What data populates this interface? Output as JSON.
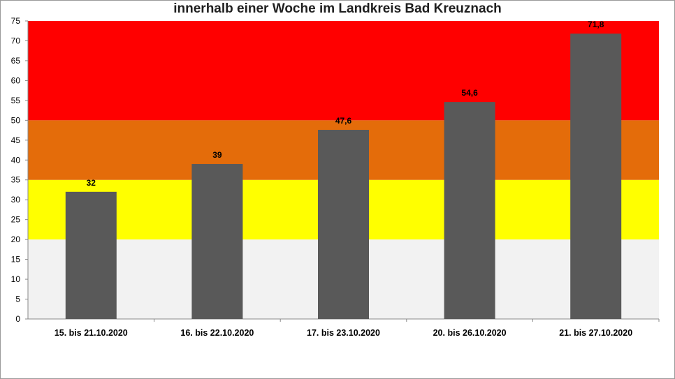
{
  "chart_data": {
    "type": "bar",
    "title": "innerhalb einer Woche im Landkreis Bad Kreuznach",
    "categories": [
      "15. bis 21.10.2020",
      "16. bis 22.10.2020",
      "17. bis 23.10.2020",
      "20. bis 26.10.2020",
      "21. bis 27.10.2020"
    ],
    "values": [
      32,
      39,
      47.6,
      54.6,
      71.8
    ],
    "data_labels": [
      "32",
      "39",
      "47,6",
      "54,6",
      "71,8"
    ],
    "ylim": [
      0,
      75
    ],
    "yticks": [
      0,
      5,
      10,
      15,
      20,
      25,
      30,
      35,
      40,
      45,
      50,
      55,
      60,
      65,
      70,
      75
    ],
    "xlabel": "",
    "ylabel": "",
    "bar_color": "#595959",
    "bands": [
      {
        "from": 0,
        "to": 20,
        "color": "#f2f2f2"
      },
      {
        "from": 20,
        "to": 35,
        "color": "#ffff00"
      },
      {
        "from": 35,
        "to": 50,
        "color": "#e46c0a"
      },
      {
        "from": 50,
        "to": 75,
        "color": "#ff0000"
      }
    ]
  }
}
